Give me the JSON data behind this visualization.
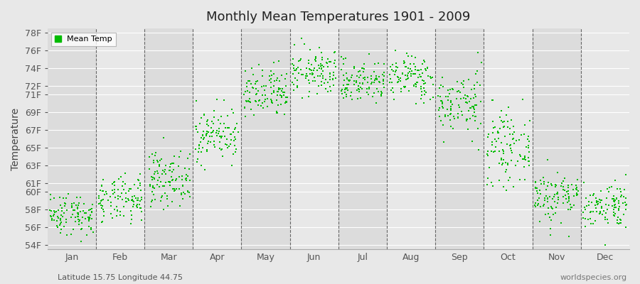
{
  "title": "Monthly Mean Temperatures 1901 - 2009",
  "ylabel": "Temperature",
  "xlabel_labels": [
    "Jan",
    "Feb",
    "Mar",
    "Apr",
    "May",
    "Jun",
    "Jul",
    "Aug",
    "Sep",
    "Oct",
    "Nov",
    "Dec"
  ],
  "ytick_labels": [
    "54F",
    "56F",
    "58F",
    "60F",
    "61F",
    "63F",
    "65F",
    "67F",
    "69F",
    "71F",
    "72F",
    "74F",
    "76F",
    "78F"
  ],
  "ytick_values": [
    54,
    56,
    58,
    60,
    61,
    63,
    65,
    67,
    69,
    71,
    72,
    74,
    76,
    78
  ],
  "ylim": [
    53.5,
    78.5
  ],
  "legend_label": "Mean Temp",
  "dot_color": "#00bb00",
  "dot_size": 3,
  "background_color": "#e8e8e8",
  "plot_bg_color": "#e8e8e8",
  "subtitle": "Latitude 15.75 Longitude 44.75",
  "watermark": "worldspecies.org",
  "monthly_means": [
    57.5,
    59.0,
    61.5,
    66.5,
    71.0,
    73.5,
    72.5,
    73.0,
    70.0,
    65.0,
    59.5,
    58.5
  ],
  "monthly_stds": [
    1.2,
    1.3,
    1.5,
    1.5,
    1.5,
    1.3,
    1.2,
    1.3,
    1.8,
    2.0,
    1.5,
    1.3
  ],
  "n_years": 109,
  "seed": 42,
  "stripe_colors": [
    "#dcdcdc",
    "#e8e8e8"
  ]
}
